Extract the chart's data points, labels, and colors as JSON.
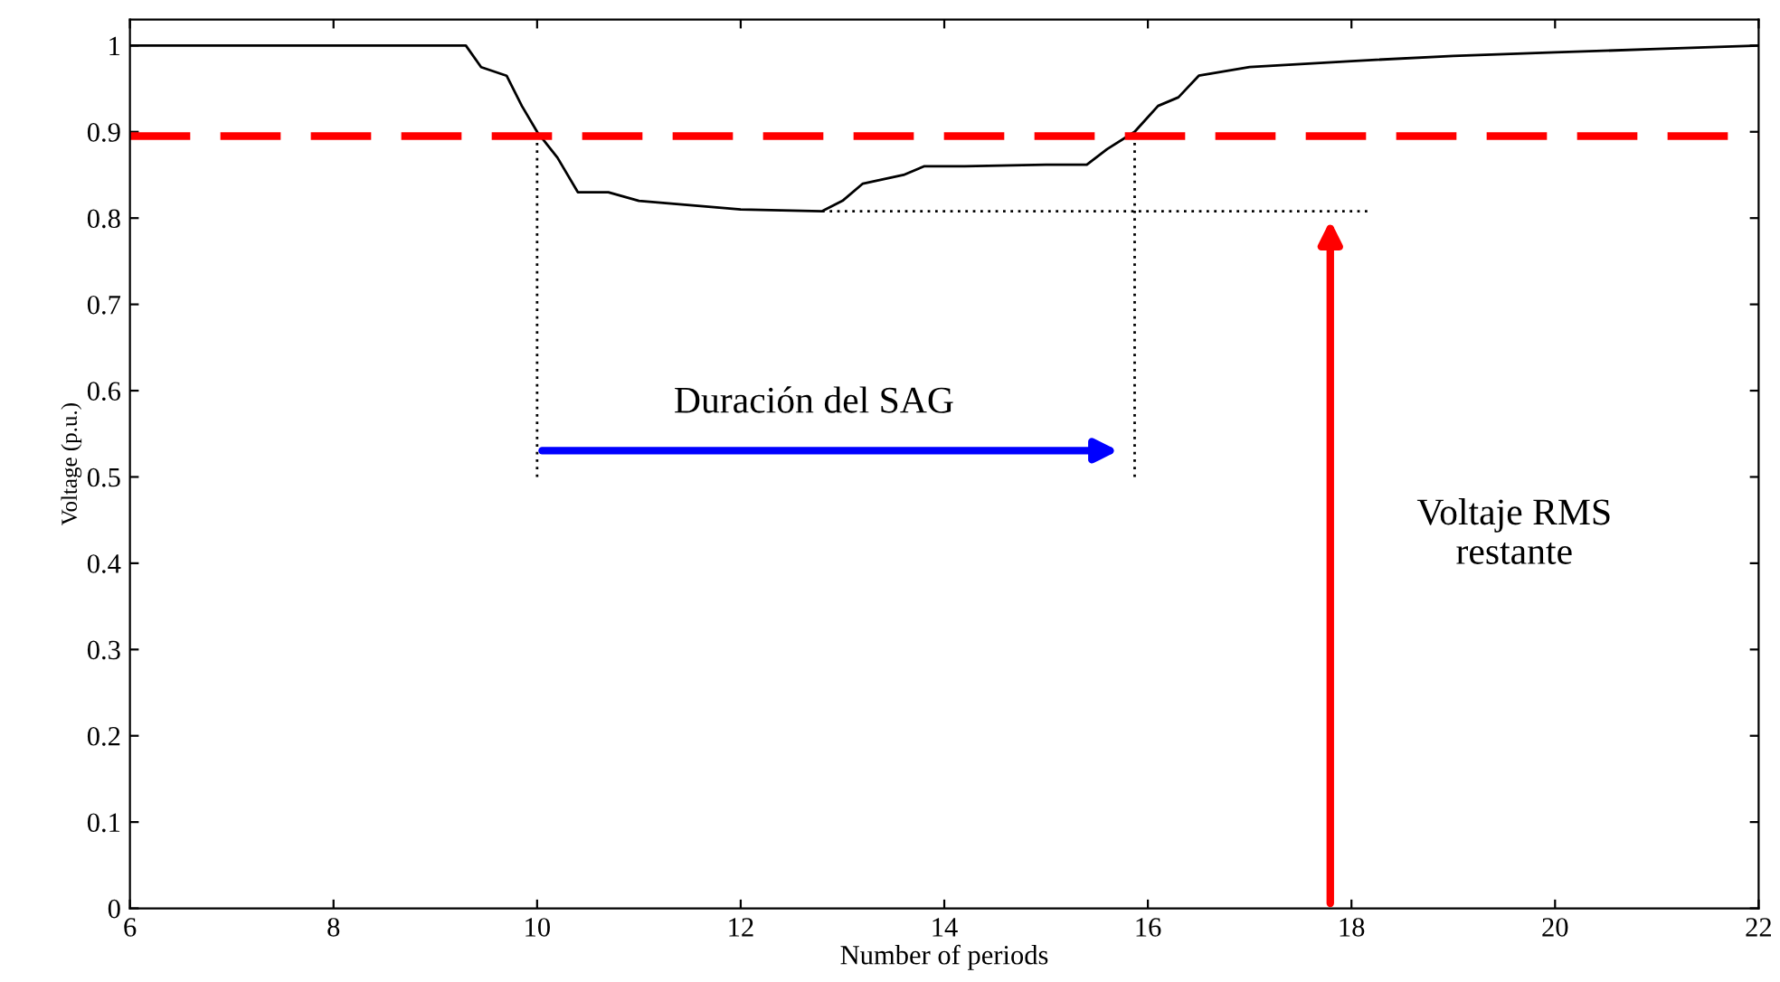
{
  "chart_data": {
    "type": "line",
    "xlabel": "Number of periods",
    "ylabel": "Voltage (p.u.)",
    "xlim": [
      6,
      22
    ],
    "ylim": [
      0,
      1.03
    ],
    "xticks": [
      6,
      8,
      10,
      12,
      14,
      16,
      18,
      20,
      22
    ],
    "yticks": [
      0,
      0.1,
      0.2,
      0.3,
      0.4,
      0.5,
      0.6,
      0.7,
      0.8,
      0.9,
      1
    ],
    "grid": false,
    "legend": false,
    "series": [
      {
        "color": "#000000",
        "line_style": "solid",
        "x": [
          6,
          9.3,
          9.45,
          9.7,
          9.85,
          10,
          10.2,
          10.4,
          10.7,
          11,
          11.5,
          12,
          12.8,
          13,
          13.2,
          13.6,
          13.8,
          14.2,
          15,
          15.4,
          15.6,
          15.87,
          16.1,
          16.3,
          16.5,
          17,
          18,
          19,
          20,
          21,
          22
        ],
        "values": [
          1,
          1,
          0.975,
          0.965,
          0.93,
          0.9,
          0.87,
          0.83,
          0.83,
          0.82,
          0.815,
          0.81,
          0.808,
          0.82,
          0.84,
          0.85,
          0.86,
          0.86,
          0.862,
          0.862,
          0.88,
          0.9,
          0.93,
          0.94,
          0.965,
          0.975,
          0.982,
          0.988,
          0.992,
          0.996,
          1
        ]
      },
      {
        "color": "#000000",
        "line_style": "dotted",
        "x": [
          10,
          10
        ],
        "values": [
          0.5,
          0.9
        ]
      },
      {
        "color": "#000000",
        "line_style": "dotted",
        "x": [
          15.87,
          15.87
        ],
        "values": [
          0.5,
          0.9
        ]
      },
      {
        "color": "#000000",
        "line_style": "dotted",
        "x": [
          12.8,
          18.2
        ],
        "values": [
          0.808,
          0.808
        ]
      }
    ],
    "ref_lines": [
      {
        "axis": "y",
        "value": 0.895,
        "color": "#ff0000",
        "line_style": "dashed"
      }
    ],
    "annotations": [
      "Duración del SAG",
      "Voltaje RMS\nrestante"
    ]
  }
}
